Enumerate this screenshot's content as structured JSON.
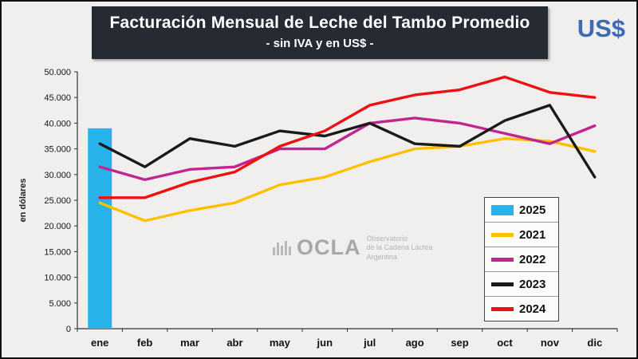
{
  "header": {
    "title": "Facturación Mensual de Leche del Tambo Promedio",
    "subtitle": "- sin IVA y en US$ -",
    "currency_label": "US$"
  },
  "watermark": {
    "logo_text": "OCLA",
    "lines": [
      "Observatorio",
      "de la Cadena Láctea",
      "Argentina"
    ]
  },
  "chart_data": {
    "type": "line",
    "title": "Facturación Mensual de Leche del Tambo Promedio",
    "subtitle": "- sin IVA y en US$ -",
    "xlabel": "",
    "ylabel": "en dólares",
    "ylim": [
      0,
      50000
    ],
    "ytick_step": 5000,
    "grid": false,
    "legend_position": "inside-right",
    "categories": [
      "ene",
      "feb",
      "mar",
      "abr",
      "may",
      "jun",
      "jul",
      "ago",
      "sep",
      "oct",
      "nov",
      "dic"
    ],
    "bar_series": {
      "name": "2025",
      "type": "bar",
      "color": "#28b2ea",
      "category": "ene",
      "value": 39000
    },
    "series": [
      {
        "name": "2021",
        "type": "line",
        "color": "#ffc000",
        "values": [
          24500,
          21000,
          23000,
          24500,
          28000,
          29500,
          32500,
          35000,
          35500,
          37000,
          36500,
          34500
        ]
      },
      {
        "name": "2022",
        "type": "line",
        "color": "#c2258f",
        "values": [
          31500,
          29000,
          31000,
          31500,
          35000,
          35000,
          40000,
          41000,
          40000,
          38000,
          36000,
          39500
        ]
      },
      {
        "name": "2023",
        "type": "line",
        "color": "#1a1a1a",
        "values": [
          36000,
          31500,
          37000,
          35500,
          38500,
          37500,
          40000,
          36000,
          35500,
          40500,
          43500,
          29500
        ]
      },
      {
        "name": "2024",
        "type": "line",
        "color": "#ee1111",
        "values": [
          25500,
          25500,
          28500,
          30500,
          35500,
          38500,
          43500,
          45500,
          46500,
          49000,
          46000,
          45000
        ]
      }
    ],
    "legend_order": [
      "2025",
      "2021",
      "2022",
      "2023",
      "2024"
    ]
  }
}
